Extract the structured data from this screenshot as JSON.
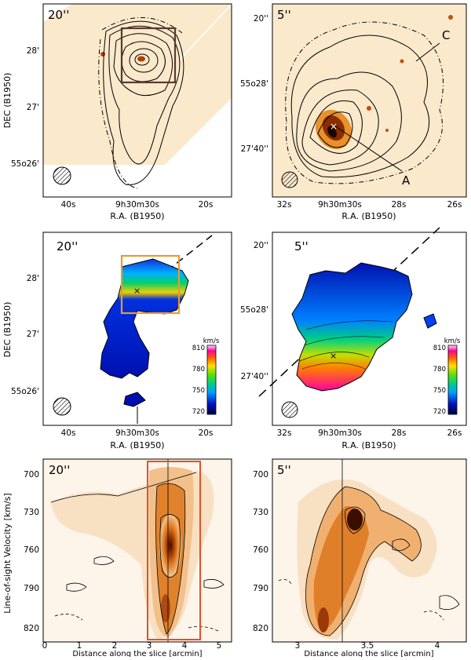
{
  "figure": {
    "panels": [
      {
        "id": "a",
        "resolution": "20''",
        "x_label": "R.A. (B1950)",
        "y_label": "DEC (B1950)",
        "x_ticks": [
          "40s",
          "9h30m30s",
          "20s"
        ],
        "y_ticks": [
          "28'",
          "27'",
          "55o26'"
        ]
      },
      {
        "id": "b",
        "resolution": "5''",
        "x_label": "R.A. (B1950)",
        "y_ticks": [
          "20''",
          "55o28'",
          "27'40''"
        ],
        "x_ticks": [
          "32s",
          "9h30m30s",
          "28s",
          "26s"
        ],
        "annotations": [
          "A",
          "C"
        ]
      },
      {
        "id": "c",
        "resolution": "20''",
        "x_label": "R.A. (B1950)",
        "y_label": "DEC (B1950)",
        "x_ticks": [
          "40s",
          "9h30m30s",
          "20s"
        ],
        "y_ticks": [
          "28'",
          "27'",
          "55o26'"
        ],
        "colorbar": {
          "unit": "km/s",
          "ticks": [
            "810",
            "780",
            "750",
            "720"
          ]
        }
      },
      {
        "id": "d",
        "resolution": "5''",
        "x_label": "R.A. (B1950)",
        "x_ticks": [
          "32s",
          "9h30m30s",
          "28s",
          "26s"
        ],
        "y_ticks": [
          "20''",
          "55o28'",
          "27'40''"
        ],
        "colorbar": {
          "unit": "km/s",
          "ticks": [
            "810",
            "780",
            "750",
            "720"
          ]
        }
      },
      {
        "id": "e",
        "resolution": "20''",
        "x_label": "Distance along the slice [arcmin]",
        "y_label": "Line-of-sight Velocity [km/s]",
        "x_ticks": [
          "0",
          "1",
          "2",
          "3",
          "4",
          "5"
        ],
        "y_ticks": [
          "700",
          "730",
          "760",
          "790",
          "820"
        ]
      },
      {
        "id": "f",
        "resolution": "5''",
        "x_label": "Distance along the slice [arcmin]",
        "x_ticks": [
          "3",
          "3.5",
          "4"
        ],
        "y_ticks": [
          "700",
          "730",
          "760",
          "790",
          "820"
        ]
      }
    ],
    "colors": {
      "map_background": "#fbe9cc",
      "box_brown": "#5a3a2a",
      "box_orange": "#e89a30",
      "box_red": "#e0522a",
      "pv_core": "#3a0e00"
    }
  }
}
